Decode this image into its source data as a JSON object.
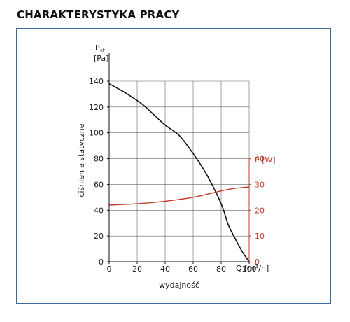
{
  "header": {
    "title": "CHARAKTERYSTYKA PRACY"
  },
  "chart_data": {
    "type": "line",
    "title": "",
    "xlabel": "wydajność",
    "x_unit_prefix": "Q [m",
    "x_unit_sup": "3",
    "x_unit_suffix": "/h]",
    "ylabel": "ciśnienie statyczne",
    "y_symbol": "P",
    "y_symbol_sub": "st",
    "y_unit": "[Pa]",
    "y2_label": "P [W]",
    "xlim": [
      0,
      100
    ],
    "ylim": [
      0,
      140
    ],
    "y2lim": [
      0,
      40
    ],
    "x_ticks": [
      0,
      20,
      40,
      60,
      80,
      100
    ],
    "y_ticks": [
      0,
      20,
      40,
      60,
      80,
      100,
      120,
      140
    ],
    "y2_ticks": [
      0,
      10,
      20,
      30,
      40
    ],
    "grid": true,
    "colors": {
      "pressure": "#111111",
      "power": "#c0392b",
      "grid": "#666666"
    },
    "series": [
      {
        "axis": "left",
        "x": [
          0,
          10,
          20,
          25,
          30,
          40,
          50,
          60,
          70,
          80,
          85,
          90,
          95,
          100
        ],
        "y": [
          138,
          132,
          125,
          121,
          116,
          106,
          98,
          84,
          67,
          45,
          29,
          18,
          8,
          0
        ]
      },
      {
        "axis": "right",
        "x": [
          0,
          20,
          40,
          60,
          80,
          90,
          100
        ],
        "y": [
          22,
          22.5,
          23.5,
          25,
          27.5,
          28.5,
          29
        ]
      }
    ]
  }
}
